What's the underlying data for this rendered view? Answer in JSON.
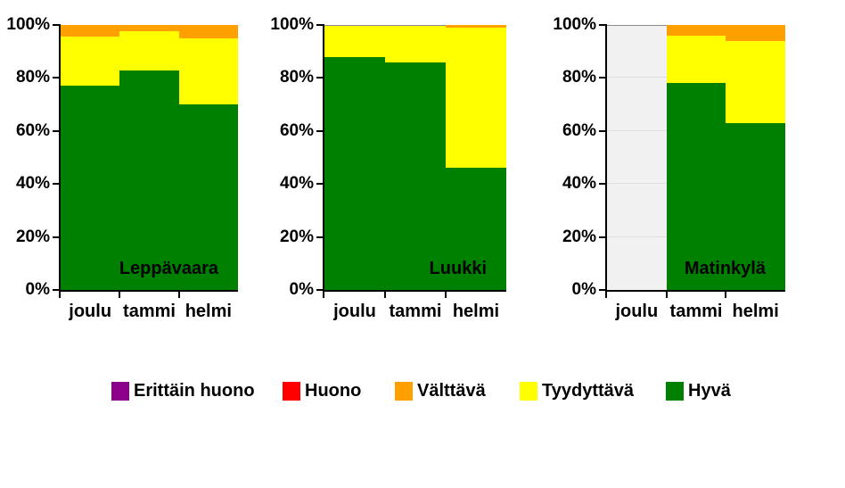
{
  "chart_data": {
    "type": "bar",
    "variant": "100-percent-stacked-columns",
    "y_axis": {
      "ticks": [
        "0%",
        "20%",
        "40%",
        "60%",
        "80%",
        "100%"
      ],
      "min": 0,
      "max": 100,
      "grid": false
    },
    "categories": [
      "joulu",
      "tammi",
      "helmi"
    ],
    "legend_position": "bottom",
    "legend": [
      {
        "id": "erittain_huono",
        "label": "Erittäin huono",
        "color": "#8B008B"
      },
      {
        "id": "huono",
        "label": "Huono",
        "color": "#FF0000"
      },
      {
        "id": "valttava",
        "label": "Välttävä",
        "color": "#FFA000"
      },
      {
        "id": "tyydyttava",
        "label": "Tyydyttävä",
        "color": "#FFFF00"
      },
      {
        "id": "hyva",
        "label": "Hyvä",
        "color": "#008000"
      }
    ],
    "charts": [
      {
        "title": "Leppävaara",
        "columns": [
          {
            "category": "joulu",
            "values": {
              "hyva": 77,
              "tyydyttava": 18.5,
              "valttava": 4.5,
              "huono": 0,
              "erittain_huono": 0
            }
          },
          {
            "category": "tammi",
            "values": {
              "hyva": 83,
              "tyydyttava": 14.5,
              "valttava": 2.5,
              "huono": 0,
              "erittain_huono": 0
            }
          },
          {
            "category": "helmi",
            "values": {
              "hyva": 70,
              "tyydyttava": 25,
              "valttava": 5,
              "huono": 0,
              "erittain_huono": 0
            }
          }
        ],
        "gray_top_line_columns": []
      },
      {
        "title": "Luukki",
        "columns": [
          {
            "category": "joulu",
            "values": {
              "hyva": 88,
              "tyydyttava": 12,
              "valttava": 0,
              "huono": 0,
              "erittain_huono": 0
            }
          },
          {
            "category": "tammi",
            "values": {
              "hyva": 86,
              "tyydyttava": 14,
              "valttava": 0,
              "huono": 0,
              "erittain_huono": 0
            }
          },
          {
            "category": "helmi",
            "values": {
              "hyva": 46,
              "tyydyttava": 53,
              "valttava": 1,
              "huono": 0,
              "erittain_huono": 0
            }
          }
        ],
        "gray_top_line_columns": [
          0,
          1
        ]
      },
      {
        "title": "Matinkylä",
        "columns": [
          {
            "category": "joulu",
            "no_data": true
          },
          {
            "category": "tammi",
            "values": {
              "hyva": 78,
              "tyydyttava": 18,
              "valttava": 4,
              "huono": 0,
              "erittain_huono": 0
            }
          },
          {
            "category": "helmi",
            "values": {
              "hyva": 63,
              "tyydyttava": 31,
              "valttava": 6,
              "huono": 0,
              "erittain_huono": 0
            }
          }
        ],
        "gray_top_line_columns": [
          0
        ]
      }
    ],
    "colors": {
      "hyva": "#008000",
      "tyydyttava": "#FFFF00",
      "valttava": "#FFA000",
      "huono": "#FF0000",
      "erittain_huono": "#8B008B",
      "no_data_fill": "#F1F1F1",
      "no_data_gridline": "#DFDFDF",
      "top_line": "#8C8C8C",
      "axis": "#000000"
    }
  }
}
